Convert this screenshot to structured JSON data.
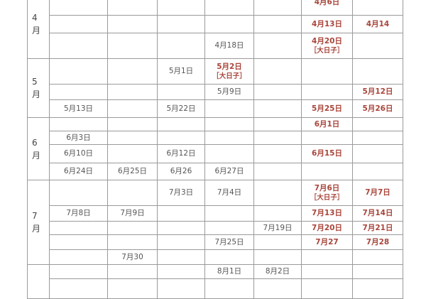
{
  "colors": {
    "highlight": "#a8453a",
    "text": "#555555",
    "grid": "#9a9a9a"
  },
  "months": [
    {
      "num": "4",
      "unit": "月",
      "rows": [
        [
          {
            "t": ""
          },
          {
            "t": ""
          },
          {
            "t": ""
          },
          {
            "t": ""
          },
          {
            "t": ""
          },
          {
            "t": "4月6日",
            "red": true
          },
          {
            "t": ""
          }
        ],
        [
          {
            "t": ""
          },
          {
            "t": ""
          },
          {
            "t": ""
          },
          {
            "t": ""
          },
          {
            "t": ""
          },
          {
            "t": "4月13日",
            "red": true
          },
          {
            "t": "4月14",
            "red": true
          }
        ],
        [
          {
            "t": ""
          },
          {
            "t": ""
          },
          {
            "t": ""
          },
          {
            "t": "4月18日"
          },
          {
            "t": ""
          },
          {
            "t": "4月20日",
            "red": true,
            "sub": "［大日子］"
          },
          {
            "t": ""
          }
        ]
      ]
    },
    {
      "num": "5",
      "unit": "月",
      "rows": [
        [
          {
            "t": ""
          },
          {
            "t": ""
          },
          {
            "t": "5月1日"
          },
          {
            "t": "5月2日",
            "red": true,
            "sub": "［大日子］"
          },
          {
            "t": ""
          },
          {
            "t": ""
          },
          {
            "t": ""
          }
        ],
        [
          {
            "t": ""
          },
          {
            "t": ""
          },
          {
            "t": ""
          },
          {
            "t": "5月9日"
          },
          {
            "t": ""
          },
          {
            "t": ""
          },
          {
            "t": "5月12日",
            "red": true
          }
        ],
        [
          {
            "t": "5月13日"
          },
          {
            "t": ""
          },
          {
            "t": "5月22日"
          },
          {
            "t": ""
          },
          {
            "t": ""
          },
          {
            "t": "5月25日",
            "red": true
          },
          {
            "t": "5月26日",
            "red": true
          }
        ]
      ]
    },
    {
      "num": "6",
      "unit": "月",
      "rows": [
        [
          {
            "t": ""
          },
          {
            "t": ""
          },
          {
            "t": ""
          },
          {
            "t": ""
          },
          {
            "t": ""
          },
          {
            "t": "6月1日",
            "red": true
          },
          {
            "t": ""
          }
        ],
        [
          {
            "t": "6月3日"
          },
          {
            "t": ""
          },
          {
            "t": ""
          },
          {
            "t": ""
          },
          {
            "t": ""
          },
          {
            "t": ""
          },
          {
            "t": ""
          }
        ],
        [
          {
            "t": "6月10日"
          },
          {
            "t": ""
          },
          {
            "t": "6月12日"
          },
          {
            "t": ""
          },
          {
            "t": ""
          },
          {
            "t": "6月15日",
            "red": true
          },
          {
            "t": ""
          }
        ],
        [
          {
            "t": "6月24日"
          },
          {
            "t": "6月25日"
          },
          {
            "t": "6月26"
          },
          {
            "t": "6月27日"
          },
          {
            "t": ""
          },
          {
            "t": ""
          },
          {
            "t": ""
          }
        ]
      ]
    },
    {
      "num": "7",
      "unit": "月",
      "rows": [
        [
          {
            "t": ""
          },
          {
            "t": ""
          },
          {
            "t": "7月3日"
          },
          {
            "t": "7月4日"
          },
          {
            "t": ""
          },
          {
            "t": "7月6日",
            "red": true,
            "sub": "［大日子］"
          },
          {
            "t": "7月7日",
            "red": true
          }
        ],
        [
          {
            "t": "7月8日"
          },
          {
            "t": "7月9日"
          },
          {
            "t": ""
          },
          {
            "t": ""
          },
          {
            "t": ""
          },
          {
            "t": "7月13日",
            "red": true
          },
          {
            "t": "7月14日",
            "red": true
          }
        ],
        [
          {
            "t": ""
          },
          {
            "t": ""
          },
          {
            "t": ""
          },
          {
            "t": ""
          },
          {
            "t": "7月19日"
          },
          {
            "t": "7月20日",
            "red": true
          },
          {
            "t": "7月21日",
            "red": true
          }
        ],
        [
          {
            "t": ""
          },
          {
            "t": ""
          },
          {
            "t": ""
          },
          {
            "t": "7月25日"
          },
          {
            "t": ""
          },
          {
            "t": "7月27",
            "red": true
          },
          {
            "t": "7月28",
            "red": true
          }
        ],
        [
          {
            "t": ""
          },
          {
            "t": "7月30"
          },
          {
            "t": ""
          },
          {
            "t": ""
          },
          {
            "t": ""
          },
          {
            "t": ""
          },
          {
            "t": ""
          }
        ]
      ]
    },
    {
      "num": "",
      "unit": "",
      "rows": [
        [
          {
            "t": ""
          },
          {
            "t": ""
          },
          {
            "t": ""
          },
          {
            "t": "8月1日"
          },
          {
            "t": "8月2日"
          },
          {
            "t": ""
          },
          {
            "t": ""
          }
        ],
        [
          {
            "t": ""
          },
          {
            "t": ""
          },
          {
            "t": ""
          },
          {
            "t": ""
          },
          {
            "t": ""
          },
          {
            "t": ""
          },
          {
            "t": ""
          }
        ]
      ]
    }
  ]
}
